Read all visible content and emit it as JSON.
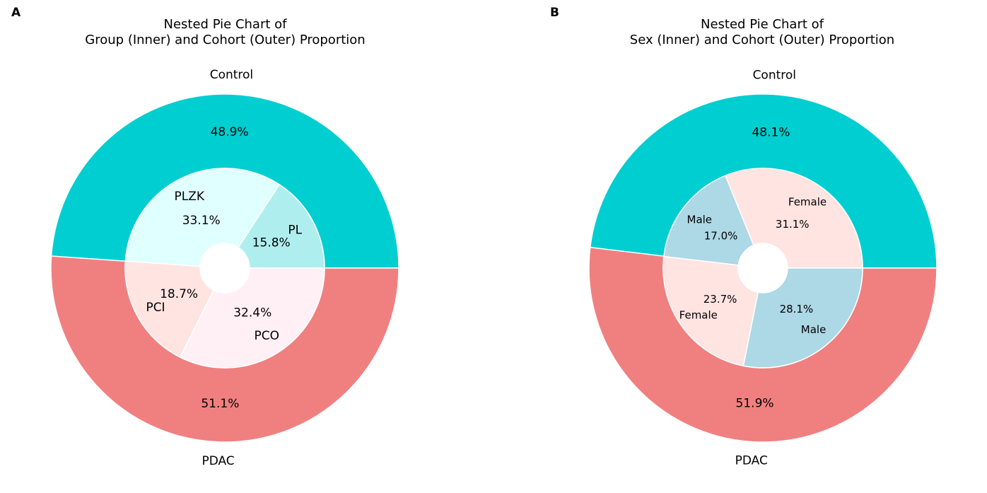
{
  "chart_data": [
    {
      "type": "pie",
      "panel_label": "A",
      "title_lines": [
        "Nested Pie Chart of",
        "Group (Inner) and Cohort (Outer) Proportion"
      ],
      "outer": {
        "name": "Cohort",
        "slices": [
          {
            "label": "Control",
            "value": 48.9,
            "pct_label": "48.9%",
            "color": "#00CED1"
          },
          {
            "label": "PDAC",
            "value": 51.1,
            "pct_label": "51.1%",
            "color": "#F08080"
          }
        ]
      },
      "inner": {
        "name": "Group",
        "slices": [
          {
            "label": "PL",
            "value": 15.8,
            "pct_label": "15.8%",
            "color": "#AFEEEE"
          },
          {
            "label": "PLZK",
            "value": 33.1,
            "pct_label": "33.1%",
            "color": "#E0FFFF"
          },
          {
            "label": "PCI",
            "value": 18.7,
            "pct_label": "18.7%",
            "color": "#FFE4E1"
          },
          {
            "label": "PCO",
            "value": 32.4,
            "pct_label": "32.4%",
            "color": "#FFF0F5"
          }
        ]
      }
    },
    {
      "type": "pie",
      "panel_label": "B",
      "title_lines": [
        "Nested Pie Chart of",
        "Sex (Inner) and Cohort (Outer) Proportion"
      ],
      "outer": {
        "name": "Cohort",
        "slices": [
          {
            "label": "Control",
            "value": 48.1,
            "pct_label": "48.1%",
            "color": "#00CED1"
          },
          {
            "label": "PDAC",
            "value": 51.9,
            "pct_label": "51.9%",
            "color": "#F08080"
          }
        ]
      },
      "inner": {
        "name": "Sex",
        "slices": [
          {
            "label": "Female",
            "value": 31.1,
            "pct_label": "31.1%",
            "color": "#FFE4E1"
          },
          {
            "label": "Male",
            "value": 17.0,
            "pct_label": "17.0%",
            "color": "#ADD8E6"
          },
          {
            "label": "Female",
            "value": 23.7,
            "pct_label": "23.7%",
            "color": "#FFE4E1"
          },
          {
            "label": "Male",
            "value": 28.1,
            "pct_label": "28.1%",
            "color": "#ADD8E6"
          }
        ]
      }
    }
  ]
}
